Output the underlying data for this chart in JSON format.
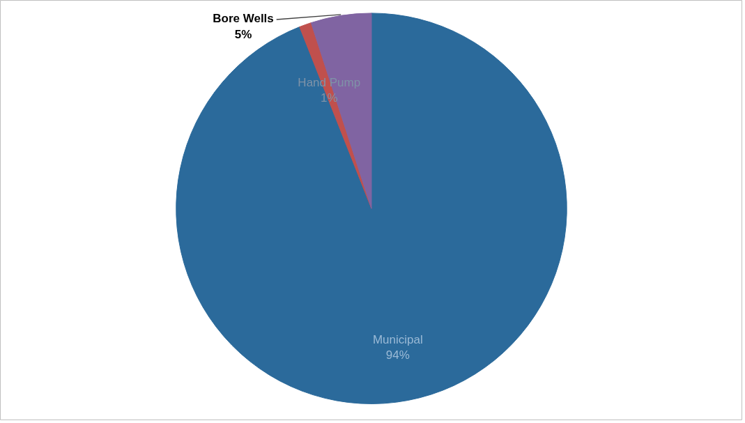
{
  "chart_data": {
    "type": "pie",
    "categories": [
      "Municipal",
      "Hand Pump",
      "Bore Wells"
    ],
    "values": [
      94,
      1,
      5
    ],
    "colors": [
      "#2b6a9b",
      "#c0504d",
      "#8064a2"
    ],
    "value_labels": [
      "94%",
      "1%",
      "5%"
    ]
  }
}
